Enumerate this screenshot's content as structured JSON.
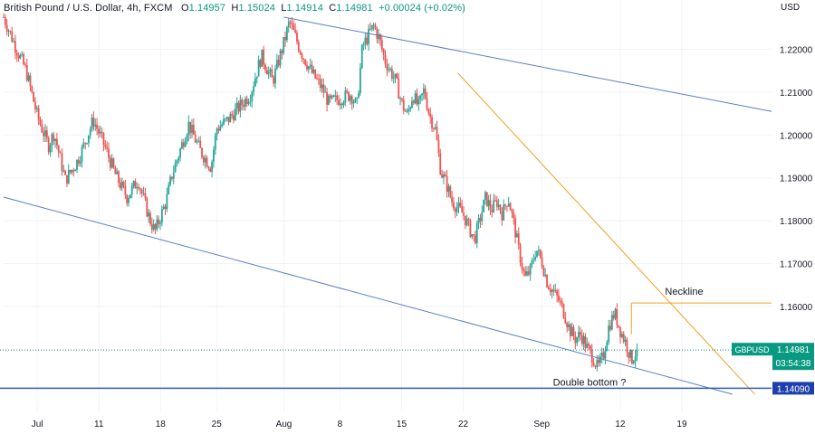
{
  "header": {
    "symbol_name": "British Pound / U.S. Dollar, 4h, FXCM",
    "open_label": "O",
    "open_value": "1.14957",
    "high_label": "H",
    "high_value": "1.15024",
    "low_label": "L",
    "low_value": "1.14914",
    "close_label": "C",
    "close_value": "1.14981",
    "change": "+0.00024 (+0.02%)"
  },
  "currency": "USD",
  "colors": {
    "up": "#26a69a",
    "down": "#ef5350",
    "channel": "#5b7fc4",
    "trendline": "#f0a020",
    "neckline": "#f0a020",
    "price_tag": "#089981",
    "support_line": "#2f5bc0",
    "support_tag": "#1e40af"
  },
  "chart_data": {
    "type": "candlestick",
    "ylim": [
      1.1355,
      1.2315
    ],
    "xlim": [
      0,
      137
    ],
    "y_ticks": [
      "1.16000",
      "1.17000",
      "1.18000",
      "1.19000",
      "1.20000",
      "1.21000",
      "1.22000"
    ],
    "x_ticks": [
      {
        "label": "Jul",
        "x": 6
      },
      {
        "label": "11",
        "x": 17
      },
      {
        "label": "18",
        "x": 28
      },
      {
        "label": "25",
        "x": 38
      },
      {
        "label": "Aug",
        "x": 50
      },
      {
        "label": "8",
        "x": 60
      },
      {
        "label": "15",
        "x": 71
      },
      {
        "label": "22",
        "x": 82
      },
      {
        "label": "Sep",
        "x": 96
      },
      {
        "label": "12",
        "x": 110
      },
      {
        "label": "19",
        "x": 121
      }
    ],
    "anchors": [
      [
        0,
        1.2275
      ],
      [
        2,
        1.221
      ],
      [
        4,
        1.215
      ],
      [
        6,
        1.2045
      ],
      [
        8,
        1.1975
      ],
      [
        9,
        1.2005
      ],
      [
        11,
        1.1895
      ],
      [
        13,
        1.1935
      ],
      [
        14,
        1.1965
      ],
      [
        16,
        1.2035
      ],
      [
        18,
        1.1975
      ],
      [
        20,
        1.1905
      ],
      [
        22,
        1.1855
      ],
      [
        24,
        1.1895
      ],
      [
        26,
        1.1805
      ],
      [
        27,
        1.1775
      ],
      [
        29,
        1.1845
      ],
      [
        30,
        1.1905
      ],
      [
        32,
        1.1985
      ],
      [
        33,
        1.2025
      ],
      [
        35,
        1.1965
      ],
      [
        37,
        1.1925
      ],
      [
        38,
        1.2015
      ],
      [
        40,
        1.2035
      ],
      [
        42,
        1.2065
      ],
      [
        44,
        1.2095
      ],
      [
        46,
        1.2185
      ],
      [
        48,
        1.2125
      ],
      [
        50,
        1.2215
      ],
      [
        51,
        1.2265
      ],
      [
        53,
        1.2195
      ],
      [
        55,
        1.2145
      ],
      [
        57,
        1.2105
      ],
      [
        58,
        1.2075
      ],
      [
        60,
        1.2085
      ],
      [
        62,
        1.2095
      ],
      [
        63,
        1.2065
      ],
      [
        64,
        1.2205
      ],
      [
        66,
        1.2255
      ],
      [
        67,
        1.2225
      ],
      [
        68,
        1.2175
      ],
      [
        70,
        1.2125
      ],
      [
        71,
        1.2075
      ],
      [
        72,
        1.2045
      ],
      [
        73,
        1.2095
      ],
      [
        74,
        1.2065
      ],
      [
        75,
        1.2105
      ],
      [
        76,
        1.2045
      ],
      [
        77,
        1.2015
      ],
      [
        78,
        1.1915
      ],
      [
        79,
        1.1885
      ],
      [
        80,
        1.1845
      ],
      [
        82,
        1.1815
      ],
      [
        83,
        1.1785
      ],
      [
        84,
        1.1755
      ],
      [
        85,
        1.1805
      ],
      [
        86,
        1.1855
      ],
      [
        87,
        1.1825
      ],
      [
        88,
        1.1845
      ],
      [
        89,
        1.1815
      ],
      [
        90,
        1.1855
      ],
      [
        91,
        1.1795
      ],
      [
        92,
        1.1725
      ],
      [
        93,
        1.1665
      ],
      [
        94,
        1.1685
      ],
      [
        95,
        1.1735
      ],
      [
        96,
        1.1705
      ],
      [
        97,
        1.1655
      ],
      [
        98,
        1.1635
      ],
      [
        99,
        1.1615
      ],
      [
        100,
        1.1585
      ],
      [
        101,
        1.1545
      ],
      [
        102,
        1.1525
      ],
      [
        103,
        1.1535
      ],
      [
        104,
        1.1505
      ],
      [
        105,
        1.1485
      ],
      [
        106,
        1.1455
      ],
      [
        107,
        1.1485
      ],
      [
        108,
        1.1555
      ],
      [
        109,
        1.1585
      ],
      [
        110,
        1.1545
      ],
      [
        111,
        1.1515
      ],
      [
        112,
        1.1475
      ],
      [
        113,
        1.1498
      ]
    ],
    "channel_upper": [
      [
        50,
        1.2275
      ],
      [
        137,
        1.2055
      ]
    ],
    "channel_lower": [
      [
        0,
        1.1855
      ],
      [
        130,
        1.1395
      ]
    ],
    "trendline": [
      [
        81,
        1.2145
      ],
      [
        134,
        1.1395
      ]
    ],
    "neckline": {
      "x1": 112,
      "x2": 137,
      "y": 1.1608
    },
    "neckline_riser": {
      "x": 112,
      "y1": 1.1535
    },
    "current_price": 1.14981,
    "support_level": 1.1409,
    "annotations": {
      "neckline": "Neckline",
      "double_bottom": "Double bottom ?"
    },
    "price_tag": {
      "symbol": "GBPUSD",
      "value": "1.14981",
      "countdown": "03:54:38"
    },
    "support_tag": "1.14090"
  }
}
